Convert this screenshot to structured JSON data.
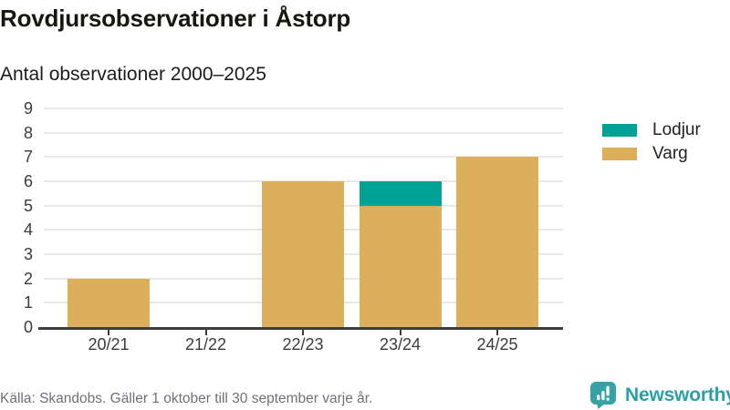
{
  "title": "Rovdjursobservationer i Åstorp",
  "subtitle": "Antal observationer 2000–2025",
  "footer": {
    "source": "Källa: Skandobs. Gäller 1 oktober till 30 september varje år."
  },
  "branding": {
    "name": "Newsworthy",
    "icon": "newsworthy-speech-bubble-bar-chart-icon",
    "wordmark_color": "#2d9fa6",
    "icon_color": "#35a2a6"
  },
  "chart_data": {
    "type": "bar",
    "stacked": true,
    "title": "Rovdjursobservationer i Åstorp",
    "subtitle": "Antal observationer 2000–2025",
    "categories": [
      "20/21",
      "21/22",
      "22/23",
      "23/24",
      "24/25"
    ],
    "series": [
      {
        "name": "Lodjur",
        "color": "#00a296",
        "values": [
          0,
          0,
          0,
          1,
          0
        ]
      },
      {
        "name": "Varg",
        "color": "#dcaf5c",
        "values": [
          2,
          0,
          6,
          5,
          7
        ]
      }
    ],
    "xlabel": "",
    "ylabel": "",
    "ylim": [
      0,
      9
    ],
    "yticks": [
      0,
      1,
      2,
      3,
      4,
      5,
      6,
      7,
      8,
      9
    ],
    "grid": true,
    "legend_position": "right"
  }
}
